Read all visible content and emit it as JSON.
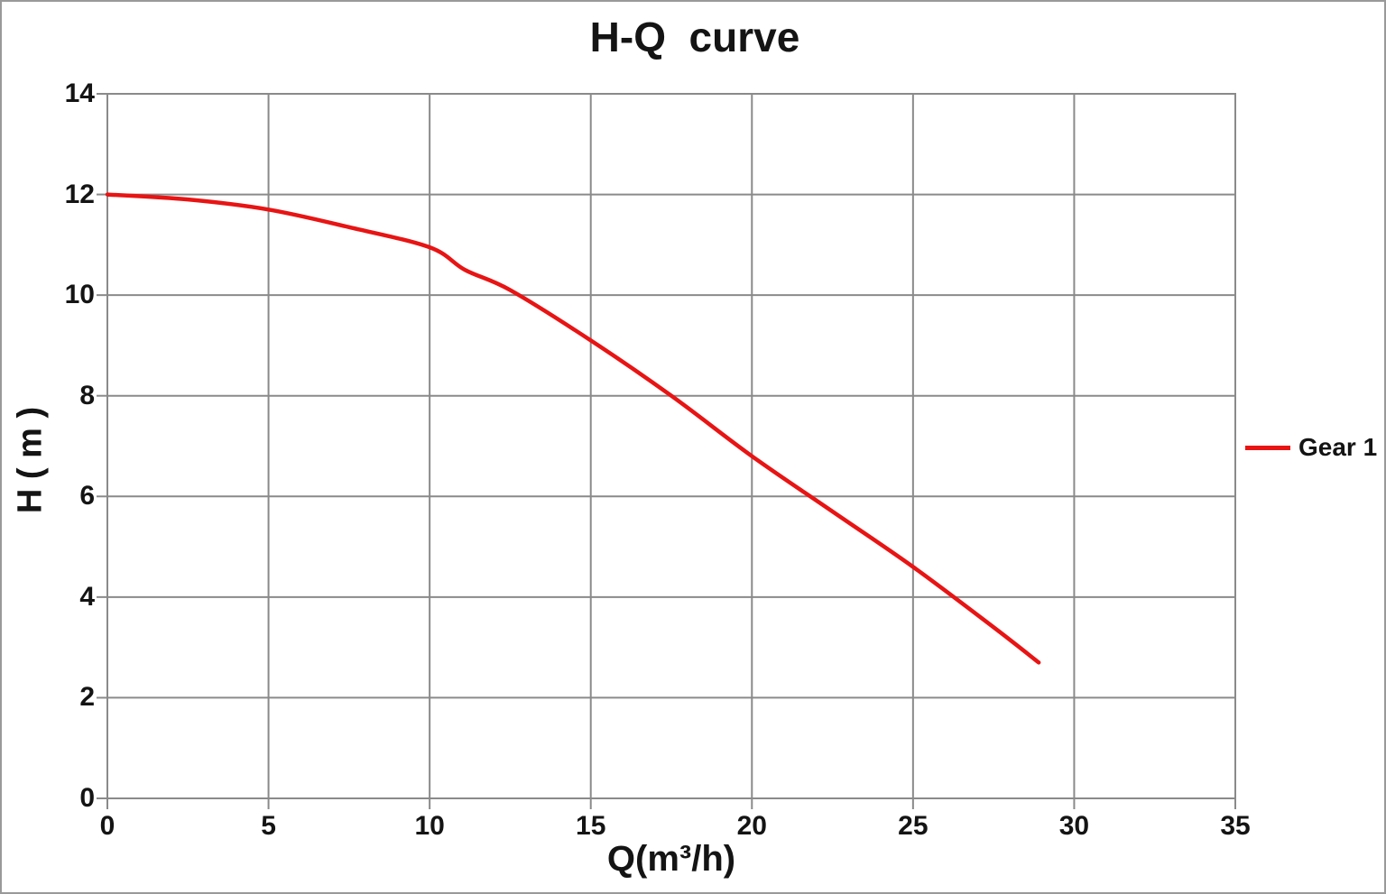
{
  "chart_data": {
    "type": "line",
    "title": "H-Q  curve",
    "xlabel": "Q(m³/h)",
    "ylabel": "H ( m )",
    "xlim": [
      0,
      35
    ],
    "ylim": [
      0,
      14
    ],
    "x_ticks": [
      0,
      5,
      10,
      15,
      20,
      25,
      30,
      35
    ],
    "y_ticks": [
      0,
      2,
      4,
      6,
      8,
      10,
      12,
      14
    ],
    "grid": true,
    "legend_position": "right-middle",
    "colors": {
      "grid": "#8a8a8a",
      "text": "#141414",
      "frame_border": "#999999",
      "background": "#ffffff"
    },
    "series": [
      {
        "name": "Gear 1",
        "color": "#e81414",
        "points": [
          [
            0,
            12.0
          ],
          [
            2.5,
            11.9
          ],
          [
            5,
            11.7
          ],
          [
            7.5,
            11.35
          ],
          [
            10,
            10.95
          ],
          [
            11.1,
            10.5
          ],
          [
            12.5,
            10.1
          ],
          [
            15,
            9.1
          ],
          [
            17.5,
            8.0
          ],
          [
            20,
            6.8
          ],
          [
            22.5,
            5.7
          ],
          [
            25,
            4.6
          ],
          [
            27.5,
            3.4
          ],
          [
            28.9,
            2.7
          ]
        ]
      }
    ]
  }
}
